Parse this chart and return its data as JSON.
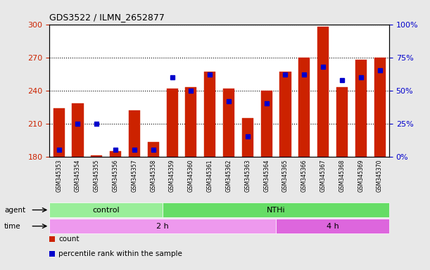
{
  "title": "GDS3522 / ILMN_2652877",
  "samples": [
    "GSM345353",
    "GSM345354",
    "GSM345355",
    "GSM345356",
    "GSM345357",
    "GSM345358",
    "GSM345359",
    "GSM345360",
    "GSM345361",
    "GSM345362",
    "GSM345363",
    "GSM345364",
    "GSM345365",
    "GSM345366",
    "GSM345367",
    "GSM345368",
    "GSM345369",
    "GSM345370"
  ],
  "counts": [
    224,
    228,
    181,
    185,
    222,
    193,
    242,
    243,
    257,
    242,
    215,
    240,
    257,
    270,
    298,
    243,
    268,
    270
  ],
  "percentile_ranks": [
    5,
    25,
    25,
    5,
    5,
    5,
    60,
    50,
    62,
    42,
    15,
    40,
    62,
    62,
    68,
    58,
    60,
    65
  ],
  "bar_color": "#cc2200",
  "dot_color": "#0000cc",
  "baseline": 180,
  "ylim_left": [
    180,
    300
  ],
  "ylim_right": [
    0,
    100
  ],
  "yticks_left": [
    180,
    210,
    240,
    270,
    300
  ],
  "yticks_right": [
    0,
    25,
    50,
    75,
    100
  ],
  "agent_groups": [
    {
      "text": "control",
      "start": 0,
      "end": 5,
      "color": "#99ee99"
    },
    {
      "text": "NTHi",
      "start": 6,
      "end": 17,
      "color": "#66dd66"
    }
  ],
  "time_groups": [
    {
      "text": "2 h",
      "start": 0,
      "end": 11,
      "color": "#ee99ee"
    },
    {
      "text": "4 h",
      "start": 12,
      "end": 17,
      "color": "#dd66dd"
    }
  ],
  "bg_color": "#e8e8e8",
  "plot_bg": "#ffffff",
  "left_axis_color": "#cc2200",
  "right_axis_color": "#0000cc",
  "legend_items": [
    {
      "label": "count",
      "color": "#cc2200"
    },
    {
      "label": "percentile rank within the sample",
      "color": "#0000cc"
    }
  ]
}
